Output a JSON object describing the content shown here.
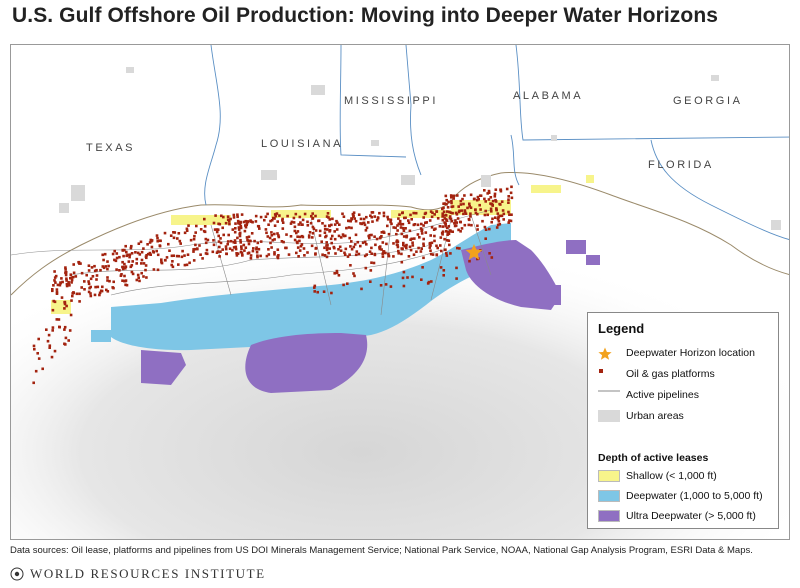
{
  "title": "U.S. Gulf Offshore Oil Production: Moving into Deeper Water Horizons",
  "states": {
    "texas": "TEXAS",
    "louisiana": "LOUISIANA",
    "mississippi": "MISSISSIPPI",
    "alabama": "ALABAMA",
    "georgia": "GEORGIA",
    "florida": "FLORIDA"
  },
  "legend": {
    "title": "Legend",
    "horizon": "Deepwater Horizon location",
    "platforms": "Oil & gas platforms",
    "pipelines": "Active pipelines",
    "urban": "Urban areas",
    "depth_title": "Depth of active leases",
    "shallow": "Shallow (< 1,000 ft)",
    "deep": "Deepwater (1,000 to 5,000 ft)",
    "ultra": "Ultra Deepwater (> 5,000 ft)"
  },
  "colors": {
    "shallow": "#f7f48b",
    "deep": "#7ec6e6",
    "ultra": "#8f6fc2",
    "platform": "#a3230f",
    "horizon": "#f2a21d",
    "urban": "#d9d9d9",
    "pipeline": "#8a8a8a"
  },
  "source": "Data sources: Oil lease, platforms and pipelines from US DOI Minerals Management Service; National Park Service, NOAA, National Gap Analysis Program, ESRI Data & Maps.",
  "footer": "WORLD RESOURCES INSTITUTE"
}
